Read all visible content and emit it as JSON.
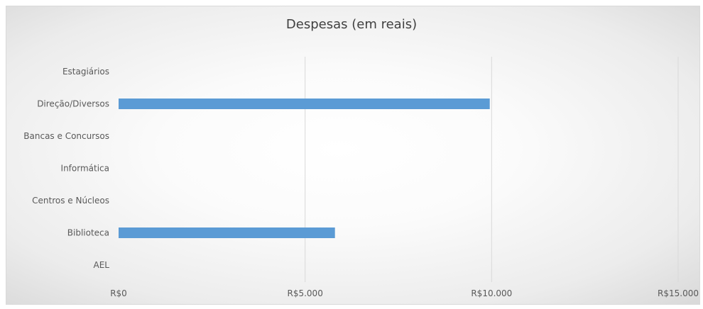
{
  "chart_data": {
    "type": "bar",
    "orientation": "horizontal",
    "title": "Despesas (em reais)",
    "xlabel": "",
    "ylabel": "",
    "categories": [
      "Estagiários",
      "Direção/Diversos",
      "Bancas e Concursos",
      "Informática",
      "Centros e Núcleos",
      "Biblioteca",
      "AEL"
    ],
    "values": [
      0,
      9950,
      0,
      0,
      0,
      5800,
      0
    ],
    "xlim": [
      0,
      15000
    ],
    "xticks": [
      0,
      5000,
      10000,
      15000
    ],
    "xtick_labels": [
      "R$0",
      "R$5.000",
      "R$10.000",
      "R$15.000"
    ],
    "grid": true,
    "legend": "none",
    "colors": {
      "bar": "#5b9bd5",
      "grid": "#d9d9d9",
      "text": "#595959",
      "title": "#404040"
    }
  }
}
